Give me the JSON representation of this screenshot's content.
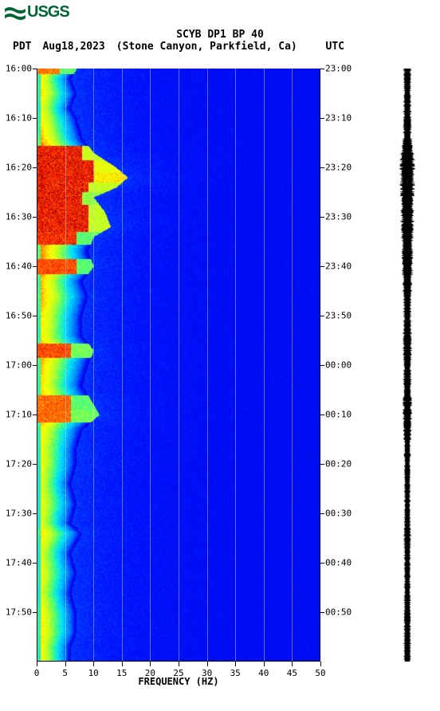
{
  "logo": {
    "text": "USGS",
    "wave_color": "#006633"
  },
  "header": {
    "title1": "SCYB DP1 BP 40",
    "left_tz": "PDT",
    "date": "Aug18,2023",
    "location": "(Stone Canyon, Parkfield, Ca)",
    "right_tz": "UTC"
  },
  "spectrogram": {
    "type": "spectrogram",
    "background_color": "#ffffff",
    "colormap_stops": [
      {
        "t": 0.0,
        "c": "#0000c0"
      },
      {
        "t": 0.15,
        "c": "#0010ff"
      },
      {
        "t": 0.3,
        "c": "#0080ff"
      },
      {
        "t": 0.45,
        "c": "#00e0ff"
      },
      {
        "t": 0.55,
        "c": "#40ff80"
      },
      {
        "t": 0.65,
        "c": "#c0ff20"
      },
      {
        "t": 0.75,
        "c": "#ffff00"
      },
      {
        "t": 0.85,
        "c": "#ff8000"
      },
      {
        "t": 0.95,
        "c": "#ff2000"
      },
      {
        "t": 1.0,
        "c": "#a00000"
      }
    ],
    "x_axis": {
      "label": "FREQUENCY (HZ)",
      "min": 0,
      "max": 50,
      "ticks": [
        0,
        5,
        10,
        15,
        20,
        25,
        30,
        35,
        40,
        45,
        50
      ],
      "grid_lines": [
        5,
        10,
        15,
        20,
        25,
        30,
        35,
        40,
        45
      ],
      "grid_color": "rgba(200,200,255,0.5)",
      "label_fontsize": 12,
      "tick_fontsize": 11
    },
    "left_time_axis": {
      "ticks": [
        "16:00",
        "16:10",
        "16:20",
        "16:30",
        "16:40",
        "16:50",
        "17:00",
        "17:10",
        "17:20",
        "17:30",
        "17:40",
        "17:50"
      ],
      "start_minute": 0,
      "end_minute": 120,
      "tick_step": 10,
      "tick_fontsize": 11
    },
    "right_time_axis": {
      "ticks": [
        "23:00",
        "23:10",
        "23:20",
        "23:30",
        "23:40",
        "23:50",
        "00:00",
        "00:10",
        "00:20",
        "00:30",
        "00:40",
        "00:50"
      ],
      "tick_fontsize": 11
    },
    "intensity_profile": {
      "comment": "fraction of max-freq with high energy and peak intensity over time rows (0..120min)",
      "rows": [
        {
          "t": 0,
          "cutoff_hz": 7,
          "peak": 0.85,
          "hot": [
            [
              0,
              4,
              0.9
            ],
            [
              4,
              7,
              0.6
            ]
          ]
        },
        {
          "t": 2,
          "cutoff_hz": 6,
          "peak": 0.8
        },
        {
          "t": 5,
          "cutoff_hz": 7,
          "peak": 0.82
        },
        {
          "t": 8,
          "cutoff_hz": 6,
          "peak": 0.78
        },
        {
          "t": 10,
          "cutoff_hz": 7,
          "peak": 0.8
        },
        {
          "t": 14,
          "cutoff_hz": 8,
          "peak": 0.85
        },
        {
          "t": 17,
          "cutoff_hz": 10,
          "peak": 0.95,
          "hot": [
            [
              0,
              8,
              1.0
            ],
            [
              8,
              12,
              0.7
            ]
          ]
        },
        {
          "t": 20,
          "cutoff_hz": 14,
          "peak": 1.0,
          "hot": [
            [
              0,
              10,
              1.0
            ],
            [
              10,
              16,
              0.75
            ]
          ]
        },
        {
          "t": 22,
          "cutoff_hz": 16,
          "peak": 1.0,
          "hot": [
            [
              0,
              10,
              1.0
            ],
            [
              10,
              18,
              0.8
            ]
          ]
        },
        {
          "t": 24,
          "cutoff_hz": 14,
          "peak": 1.0,
          "hot": [
            [
              0,
              9,
              1.0
            ],
            [
              9,
              16,
              0.7
            ]
          ]
        },
        {
          "t": 26,
          "cutoff_hz": 10,
          "peak": 0.95,
          "hot": [
            [
              0,
              8,
              1.0
            ],
            [
              8,
              12,
              0.65
            ]
          ]
        },
        {
          "t": 29,
          "cutoff_hz": 12,
          "peak": 0.98,
          "hot": [
            [
              0,
              9,
              1.0
            ],
            [
              9,
              14,
              0.7
            ]
          ]
        },
        {
          "t": 32,
          "cutoff_hz": 13,
          "peak": 0.98,
          "hot": [
            [
              0,
              9,
              1.0
            ],
            [
              9,
              15,
              0.7
            ]
          ]
        },
        {
          "t": 34,
          "cutoff_hz": 10,
          "peak": 0.92,
          "hot": [
            [
              0,
              7,
              0.98
            ],
            [
              7,
              12,
              0.6
            ]
          ]
        },
        {
          "t": 37,
          "cutoff_hz": 9,
          "peak": 0.88
        },
        {
          "t": 40,
          "cutoff_hz": 10,
          "peak": 0.9,
          "hot": [
            [
              0,
              7,
              0.95
            ],
            [
              7,
              12,
              0.6
            ]
          ]
        },
        {
          "t": 43,
          "cutoff_hz": 8,
          "peak": 0.85
        },
        {
          "t": 46,
          "cutoff_hz": 9,
          "peak": 0.86
        },
        {
          "t": 50,
          "cutoff_hz": 8,
          "peak": 0.82
        },
        {
          "t": 54,
          "cutoff_hz": 8,
          "peak": 0.8
        },
        {
          "t": 57,
          "cutoff_hz": 10,
          "peak": 0.88,
          "hot": [
            [
              0,
              6,
              0.95
            ],
            [
              6,
              12,
              0.62
            ]
          ]
        },
        {
          "t": 60,
          "cutoff_hz": 9,
          "peak": 0.84
        },
        {
          "t": 64,
          "cutoff_hz": 8,
          "peak": 0.82
        },
        {
          "t": 68,
          "cutoff_hz": 10,
          "peak": 0.86,
          "hot": [
            [
              0,
              6,
              0.92
            ],
            [
              6,
              12,
              0.6
            ]
          ]
        },
        {
          "t": 70,
          "cutoff_hz": 11,
          "peak": 0.88,
          "hot": [
            [
              0,
              6,
              0.92
            ],
            [
              6,
              13,
              0.62
            ]
          ]
        },
        {
          "t": 73,
          "cutoff_hz": 8,
          "peak": 0.8
        },
        {
          "t": 77,
          "cutoff_hz": 7,
          "peak": 0.78
        },
        {
          "t": 80,
          "cutoff_hz": 7,
          "peak": 0.78
        },
        {
          "t": 84,
          "cutoff_hz": 6,
          "peak": 0.76
        },
        {
          "t": 88,
          "cutoff_hz": 7,
          "peak": 0.78
        },
        {
          "t": 92,
          "cutoff_hz": 6,
          "peak": 0.76
        },
        {
          "t": 94,
          "cutoff_hz": 8,
          "peak": 0.82
        },
        {
          "t": 98,
          "cutoff_hz": 6,
          "peak": 0.76
        },
        {
          "t": 102,
          "cutoff_hz": 7,
          "peak": 0.78
        },
        {
          "t": 106,
          "cutoff_hz": 6,
          "peak": 0.76
        },
        {
          "t": 110,
          "cutoff_hz": 7,
          "peak": 0.8
        },
        {
          "t": 114,
          "cutoff_hz": 7,
          "peak": 0.82
        },
        {
          "t": 117,
          "cutoff_hz": 6,
          "peak": 0.8
        },
        {
          "t": 120,
          "cutoff_hz": 6,
          "peak": 0.8
        }
      ],
      "blue_floor": 0.12,
      "blue_noise": 0.06
    },
    "grid_overlay_color": "#a0a0ff"
  },
  "waveform": {
    "color": "#000000",
    "baseline_amp": 0.35,
    "envelope": [
      {
        "t": 0,
        "a": 0.5
      },
      {
        "t": 5,
        "a": 0.45
      },
      {
        "t": 10,
        "a": 0.5
      },
      {
        "t": 15,
        "a": 0.6
      },
      {
        "t": 18,
        "a": 0.95
      },
      {
        "t": 21,
        "a": 1.0
      },
      {
        "t": 24,
        "a": 0.95
      },
      {
        "t": 28,
        "a": 0.85
      },
      {
        "t": 32,
        "a": 0.85
      },
      {
        "t": 36,
        "a": 0.7
      },
      {
        "t": 40,
        "a": 0.75
      },
      {
        "t": 45,
        "a": 0.55
      },
      {
        "t": 50,
        "a": 0.5
      },
      {
        "t": 56,
        "a": 0.6
      },
      {
        "t": 60,
        "a": 0.5
      },
      {
        "t": 66,
        "a": 0.55
      },
      {
        "t": 70,
        "a": 0.6
      },
      {
        "t": 76,
        "a": 0.45
      },
      {
        "t": 82,
        "a": 0.4
      },
      {
        "t": 90,
        "a": 0.4
      },
      {
        "t": 95,
        "a": 0.45
      },
      {
        "t": 102,
        "a": 0.4
      },
      {
        "t": 110,
        "a": 0.45
      },
      {
        "t": 116,
        "a": 0.45
      },
      {
        "t": 120,
        "a": 0.45
      }
    ]
  }
}
